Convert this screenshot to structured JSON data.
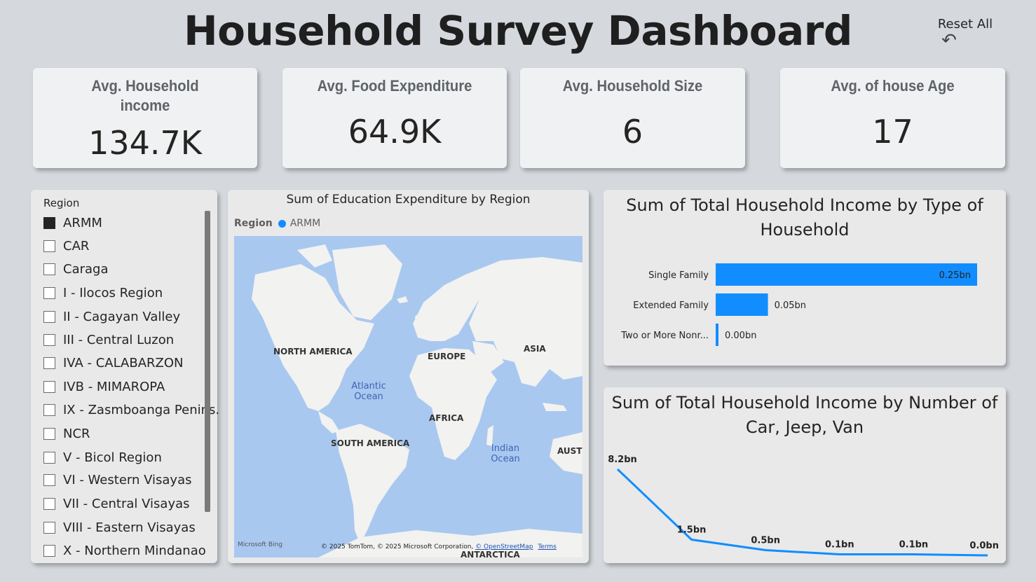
{
  "header": {
    "title": "Household Survey Dashboard",
    "reset_label": "Reset All",
    "reset_icon": "undo-icon"
  },
  "kpis": [
    {
      "label": "Avg. Household income",
      "value": "134.7K"
    },
    {
      "label": "Avg. Food Expenditure",
      "value": "64.9K"
    },
    {
      "label": "Avg. Household Size",
      "value": "6"
    },
    {
      "label": "Avg. of house Age",
      "value": "17"
    }
  ],
  "slicer": {
    "header": "Region",
    "items": [
      {
        "label": "ARMM",
        "checked": true
      },
      {
        "label": "CAR",
        "checked": false
      },
      {
        "label": "Caraga",
        "checked": false
      },
      {
        "label": "I - Ilocos Region",
        "checked": false
      },
      {
        "label": "II - Cagayan Valley",
        "checked": false
      },
      {
        "label": "III - Central Luzon",
        "checked": false
      },
      {
        "label": "IVA - CALABARZON",
        "checked": false
      },
      {
        "label": "IVB - MIMAROPA",
        "checked": false
      },
      {
        "label": "IX - Zasmboanga Penins.",
        "checked": false
      },
      {
        "label": "NCR",
        "checked": false
      },
      {
        "label": "V - Bicol Region",
        "checked": false
      },
      {
        "label": "VI - Western Visayas",
        "checked": false
      },
      {
        "label": "VII - Central Visayas",
        "checked": false
      },
      {
        "label": "VIII - Eastern Visayas",
        "checked": false
      },
      {
        "label": "X - Northern Mindanao",
        "checked": false
      }
    ]
  },
  "map_visual": {
    "title": "Sum of Education Expenditure by Region",
    "legend_key": "Region",
    "legend_value": "ARMM",
    "legend_color": "#118dff",
    "continents": [
      "NORTH AMERICA",
      "EUROPE",
      "ASIA",
      "AFRICA",
      "SOUTH AMERICA",
      "AUST",
      "ANTARCTICA"
    ],
    "oceans": [
      "Atlantic Ocean",
      "Indian Ocean"
    ],
    "bing_logo": "Microsoft Bing",
    "attribution": "© 2025 TomTom, © 2025 Microsoft Corporation,",
    "attribution_link": "© OpenStreetMap",
    "terms": "Terms"
  },
  "chart_data": [
    {
      "type": "bar",
      "orientation": "horizontal",
      "title": "Sum of Total Household Income by Type of Household",
      "categories": [
        "Single Family",
        "Extended Family",
        "Two or More Nonr..."
      ],
      "values": [
        0.25,
        0.05,
        0.0
      ],
      "data_labels": [
        "0.25bn",
        "0.05bn",
        "0.00bn"
      ],
      "unit": "bn",
      "color": "#118dff",
      "xlim": [
        0,
        0.25
      ]
    },
    {
      "type": "line",
      "title": "Sum of Total Household Income by Number of Car, Jeep, Van",
      "x": [
        0,
        1,
        2,
        3,
        4,
        5
      ],
      "values": [
        8.2,
        1.5,
        0.5,
        0.1,
        0.1,
        0.0
      ],
      "data_labels": [
        "8.2bn",
        "1.5bn",
        "0.5bn",
        "0.1bn",
        "0.1bn",
        "0.0bn"
      ],
      "unit": "bn",
      "color": "#118dff",
      "ylim": [
        0,
        8.2
      ]
    }
  ]
}
